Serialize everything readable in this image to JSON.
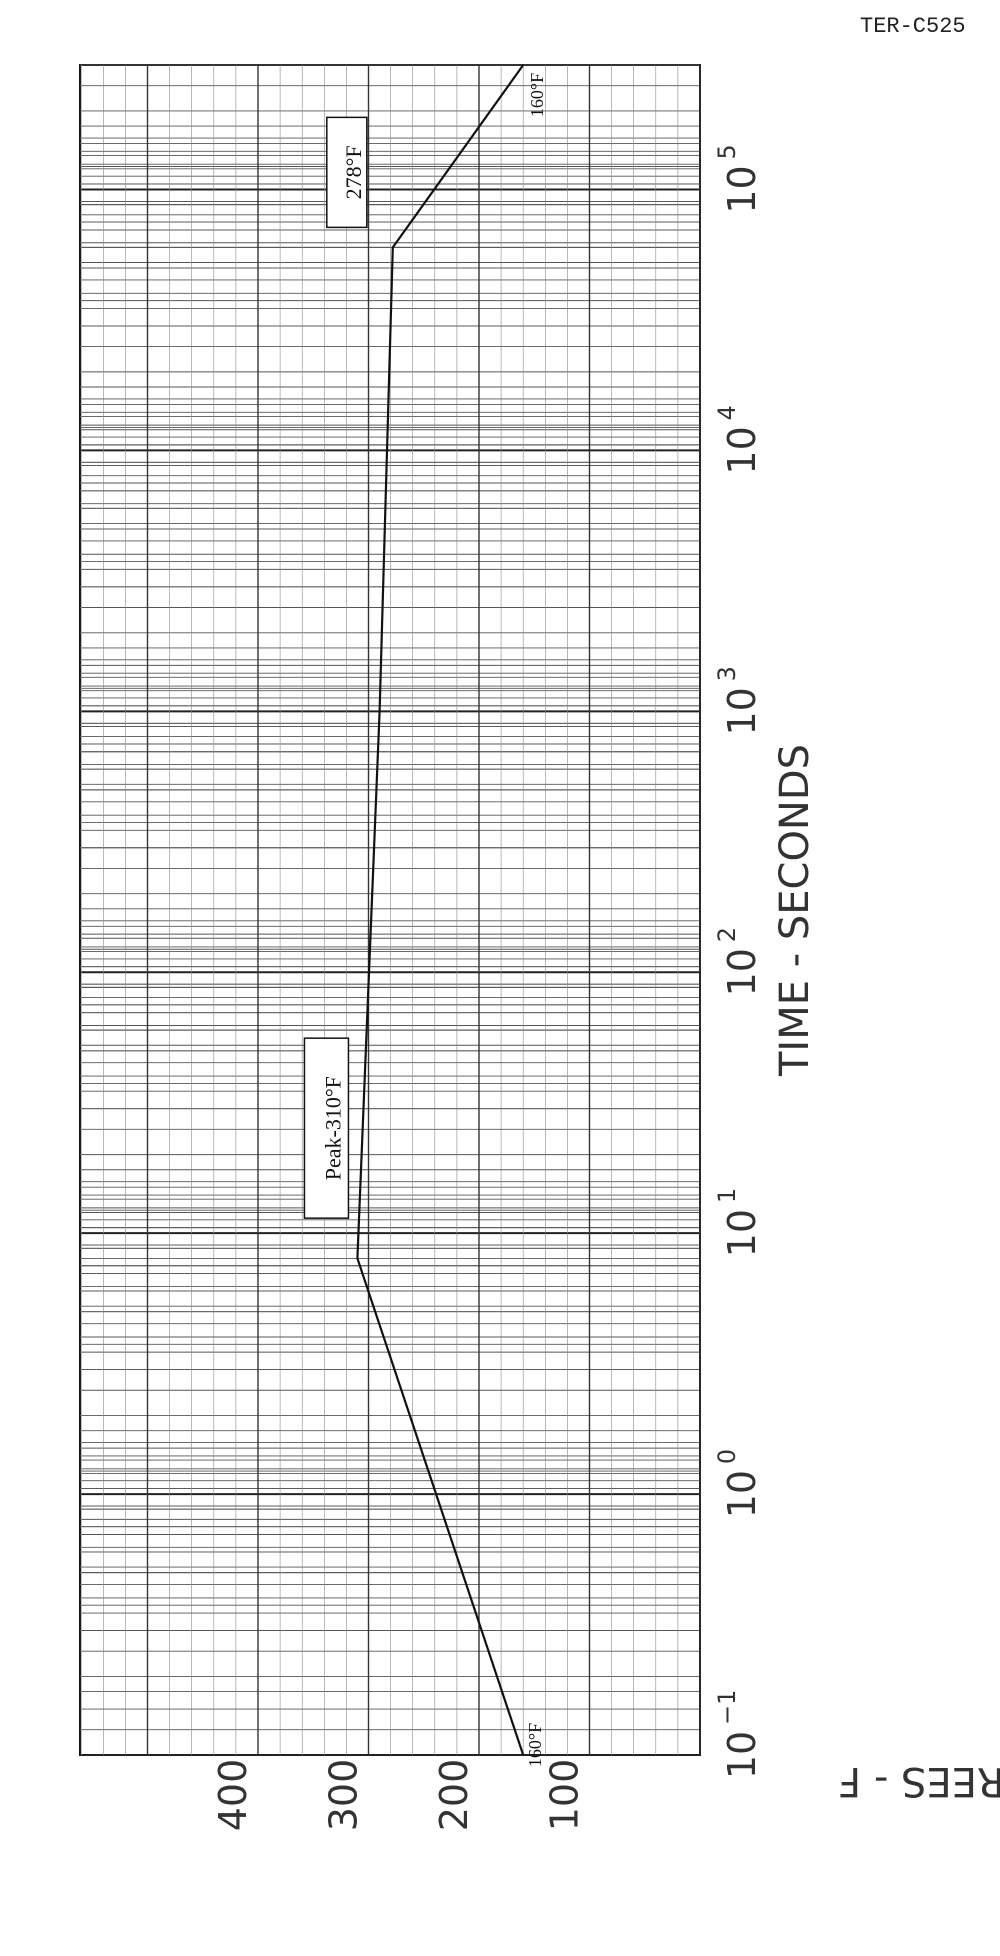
{
  "page": {
    "doc_id": "TER-C525"
  },
  "chart_data": {
    "type": "line",
    "orientation": "rotated-90",
    "xlabel": "TIME - SECONDS",
    "ylabel": "DEGREES - F",
    "x_scale": "log",
    "xlim": [
      0.1,
      300000
    ],
    "ylim": [
      0,
      450
    ],
    "x_ticks": [
      {
        "value": 0.1,
        "base": "10",
        "exp": "−1"
      },
      {
        "value": 1,
        "base": "10",
        "exp": "0"
      },
      {
        "value": 10,
        "base": "10",
        "exp": "1"
      },
      {
        "value": 100,
        "base": "10",
        "exp": "2"
      },
      {
        "value": 1000,
        "base": "10",
        "exp": "3"
      },
      {
        "value": 10000,
        "base": "10",
        "exp": "4"
      },
      {
        "value": 100000,
        "base": "10",
        "exp": "5"
      }
    ],
    "y_ticks": [
      {
        "value": 100,
        "label": "100"
      },
      {
        "value": 200,
        "label": "200"
      },
      {
        "value": 300,
        "label": "300"
      },
      {
        "value": 400,
        "label": "400"
      }
    ],
    "grid": true,
    "series": [
      {
        "points": [
          {
            "x": 0.1,
            "y": 160
          },
          {
            "x": 8,
            "y": 310
          },
          {
            "x": 1000,
            "y": 290
          },
          {
            "x": 60000,
            "y": 278
          },
          {
            "x": 300000,
            "y": 160
          }
        ]
      }
    ],
    "annotations": [
      {
        "text": "Peak-310°F",
        "x": 10,
        "y": 310
      },
      {
        "text": "278°F",
        "x": 60000,
        "y": 278
      },
      {
        "text": "160°F",
        "x": 0.1,
        "y": 160
      },
      {
        "text": "160°F",
        "x": 300000,
        "y": 160
      }
    ]
  }
}
